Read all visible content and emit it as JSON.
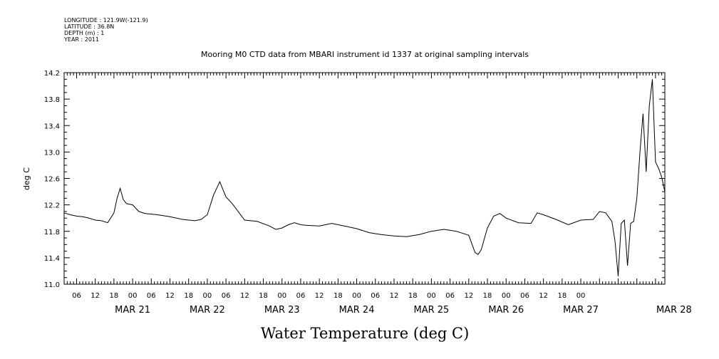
{
  "header": {
    "longitude": "LONGITUDE : 121.9W(-121.9)",
    "latitude": "LATITUDE : 36.8N",
    "depth": "DEPTH (m) : 1",
    "year": "YEAR : 2011"
  },
  "chart_data": {
    "type": "line",
    "title": "Mooring M0 CTD data from MBARI instrument id 1337 at original sampling intervals",
    "xlabel": "Water Temperature (deg C)",
    "ylabel": "deg C",
    "ylim": [
      11.0,
      14.2
    ],
    "xlim": [
      "2011-03-20T02:00",
      "2011-03-28T03:00"
    ],
    "grid": false,
    "y_ticks": [
      "11.0",
      "11.4",
      "11.8",
      "12.2",
      "12.6",
      "13.0",
      "13.4",
      "13.8",
      "14.2"
    ],
    "x_hour_ticks": [
      "06",
      "12",
      "18",
      "00",
      "06",
      "12",
      "18",
      "00",
      "06",
      "12",
      "18",
      "00",
      "06",
      "12",
      "18",
      "00",
      "06",
      "12",
      "18",
      "00",
      "06",
      "12",
      "18",
      "00",
      "06",
      "12",
      "18",
      "00"
    ],
    "x_day_labels": [
      "MAR 21",
      "MAR 22",
      "MAR 23",
      "MAR 24",
      "MAR 25",
      "MAR 26",
      "MAR 27",
      "MAR 28"
    ],
    "series": [
      {
        "x": [
          "2011-03-20T02:00",
          "2011-03-20T04:00",
          "2011-03-20T06:00",
          "2011-03-20T08:00",
          "2011-03-20T10:00",
          "2011-03-20T12:00",
          "2011-03-20T14:00",
          "2011-03-20T16:00",
          "2011-03-20T18:00",
          "2011-03-20T19:00",
          "2011-03-20T20:00",
          "2011-03-20T21:00",
          "2011-03-20T22:00",
          "2011-03-21T00:00",
          "2011-03-21T02:00",
          "2011-03-21T04:00",
          "2011-03-21T08:00",
          "2011-03-21T12:00",
          "2011-03-21T16:00",
          "2011-03-21T20:00",
          "2011-03-21T22:00",
          "2011-03-22T00:00",
          "2011-03-22T02:00",
          "2011-03-22T04:00",
          "2011-03-22T06:00",
          "2011-03-22T08:00",
          "2011-03-22T12:00",
          "2011-03-22T16:00",
          "2011-03-22T20:00",
          "2011-03-22T22:00",
          "2011-03-23T00:00",
          "2011-03-23T02:00",
          "2011-03-23T04:00",
          "2011-03-23T06:00",
          "2011-03-23T08:00",
          "2011-03-23T12:00",
          "2011-03-23T16:00",
          "2011-03-23T20:00",
          "2011-03-24T00:00",
          "2011-03-24T04:00",
          "2011-03-24T08:00",
          "2011-03-24T12:00",
          "2011-03-24T16:00",
          "2011-03-24T20:00",
          "2011-03-25T00:00",
          "2011-03-25T04:00",
          "2011-03-25T08:00",
          "2011-03-25T12:00",
          "2011-03-25T14:00",
          "2011-03-25T15:00",
          "2011-03-25T16:00",
          "2011-03-25T18:00",
          "2011-03-25T20:00",
          "2011-03-25T22:00",
          "2011-03-26T00:00",
          "2011-03-26T04:00",
          "2011-03-26T08:00",
          "2011-03-26T10:00",
          "2011-03-26T12:00",
          "2011-03-26T16:00",
          "2011-03-26T20:00",
          "2011-03-27T00:00",
          "2011-03-27T04:00",
          "2011-03-27T06:00",
          "2011-03-27T08:00",
          "2011-03-27T10:00",
          "2011-03-27T11:00",
          "2011-03-27T12:00",
          "2011-03-27T13:00",
          "2011-03-27T14:00",
          "2011-03-27T15:00",
          "2011-03-27T16:00",
          "2011-03-27T17:00",
          "2011-03-27T18:00",
          "2011-03-27T19:00",
          "2011-03-27T20:00",
          "2011-03-27T21:00",
          "2011-03-27T22:00",
          "2011-03-27T23:00",
          "2011-03-28T00:00",
          "2011-03-28T01:00",
          "2011-03-28T02:00",
          "2011-03-28T03:00"
        ],
        "values": [
          12.08,
          12.05,
          12.03,
          12.02,
          12.0,
          11.97,
          11.96,
          11.93,
          12.08,
          12.3,
          12.45,
          12.28,
          12.22,
          12.2,
          12.1,
          12.07,
          12.05,
          12.02,
          11.98,
          11.96,
          11.98,
          12.05,
          12.35,
          12.55,
          12.32,
          12.22,
          11.97,
          11.95,
          11.88,
          11.83,
          11.85,
          11.9,
          11.93,
          11.9,
          11.89,
          11.88,
          11.92,
          11.88,
          11.84,
          11.78,
          11.75,
          11.73,
          11.72,
          11.75,
          11.8,
          11.83,
          11.8,
          11.74,
          11.48,
          11.45,
          11.52,
          11.85,
          12.03,
          12.07,
          12.0,
          11.93,
          11.92,
          12.08,
          12.05,
          11.98,
          11.9,
          11.97,
          11.98,
          12.1,
          12.08,
          11.95,
          11.65,
          11.12,
          11.92,
          11.97,
          11.28,
          11.92,
          11.95,
          12.3,
          13.0,
          13.58,
          12.7,
          13.7,
          14.1,
          12.85,
          12.75,
          12.62,
          12.4
        ]
      }
    ]
  }
}
